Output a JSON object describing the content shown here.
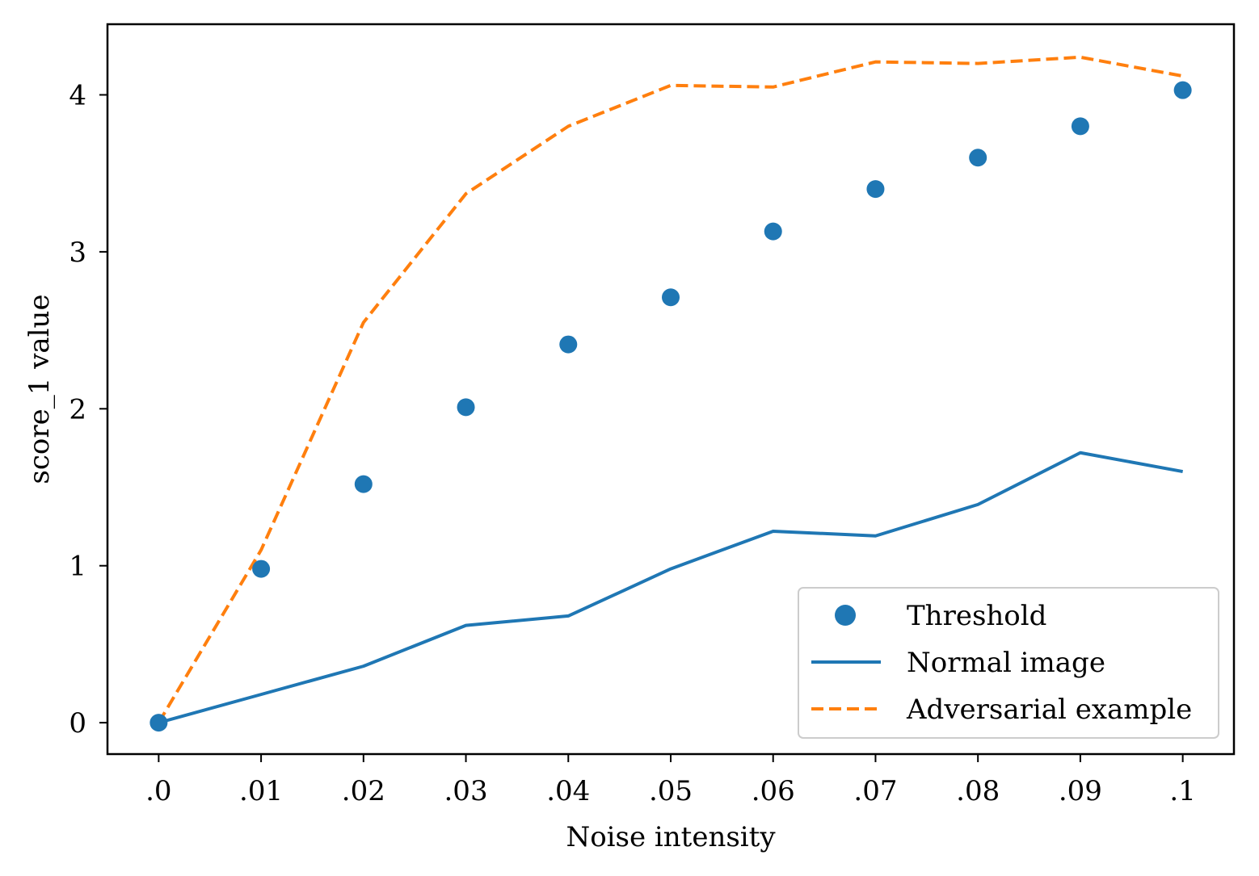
{
  "chart_data": {
    "type": "line",
    "title": "",
    "xlabel": "Noise intensity",
    "ylabel": "score_1 value",
    "x_tick_labels": [
      ".0",
      ".01",
      ".02",
      ".03",
      ".04",
      ".05",
      ".06",
      ".07",
      ".08",
      ".09",
      ".1"
    ],
    "x": [
      0,
      0.01,
      0.02,
      0.03,
      0.04,
      0.05,
      0.06,
      0.07,
      0.08,
      0.09,
      0.1
    ],
    "xlim": [
      -0.005,
      0.105
    ],
    "ylim": [
      -0.2,
      4.45
    ],
    "y_ticks": [
      0,
      1,
      2,
      3,
      4
    ],
    "y_tick_labels": [
      "0",
      "1",
      "2",
      "3",
      "4"
    ],
    "grid": false,
    "legend_position": "lower-right",
    "series": [
      {
        "name": "Threshold",
        "kind": "scatter",
        "color": "#1f77b4",
        "values": [
          0.0,
          0.98,
          1.52,
          2.01,
          2.41,
          2.71,
          3.13,
          3.4,
          3.6,
          3.8,
          4.03
        ]
      },
      {
        "name": "Normal image",
        "kind": "line",
        "style": "solid",
        "color": "#1f77b4",
        "values": [
          0.0,
          0.18,
          0.36,
          0.62,
          0.68,
          0.98,
          1.22,
          1.19,
          1.39,
          1.72,
          1.6
        ]
      },
      {
        "name": "Adversarial example",
        "kind": "line",
        "style": "dashed",
        "color": "#ff7f0e",
        "values": [
          0.0,
          1.1,
          2.55,
          3.37,
          3.8,
          4.06,
          4.05,
          4.21,
          4.2,
          4.24,
          4.12
        ]
      }
    ]
  }
}
